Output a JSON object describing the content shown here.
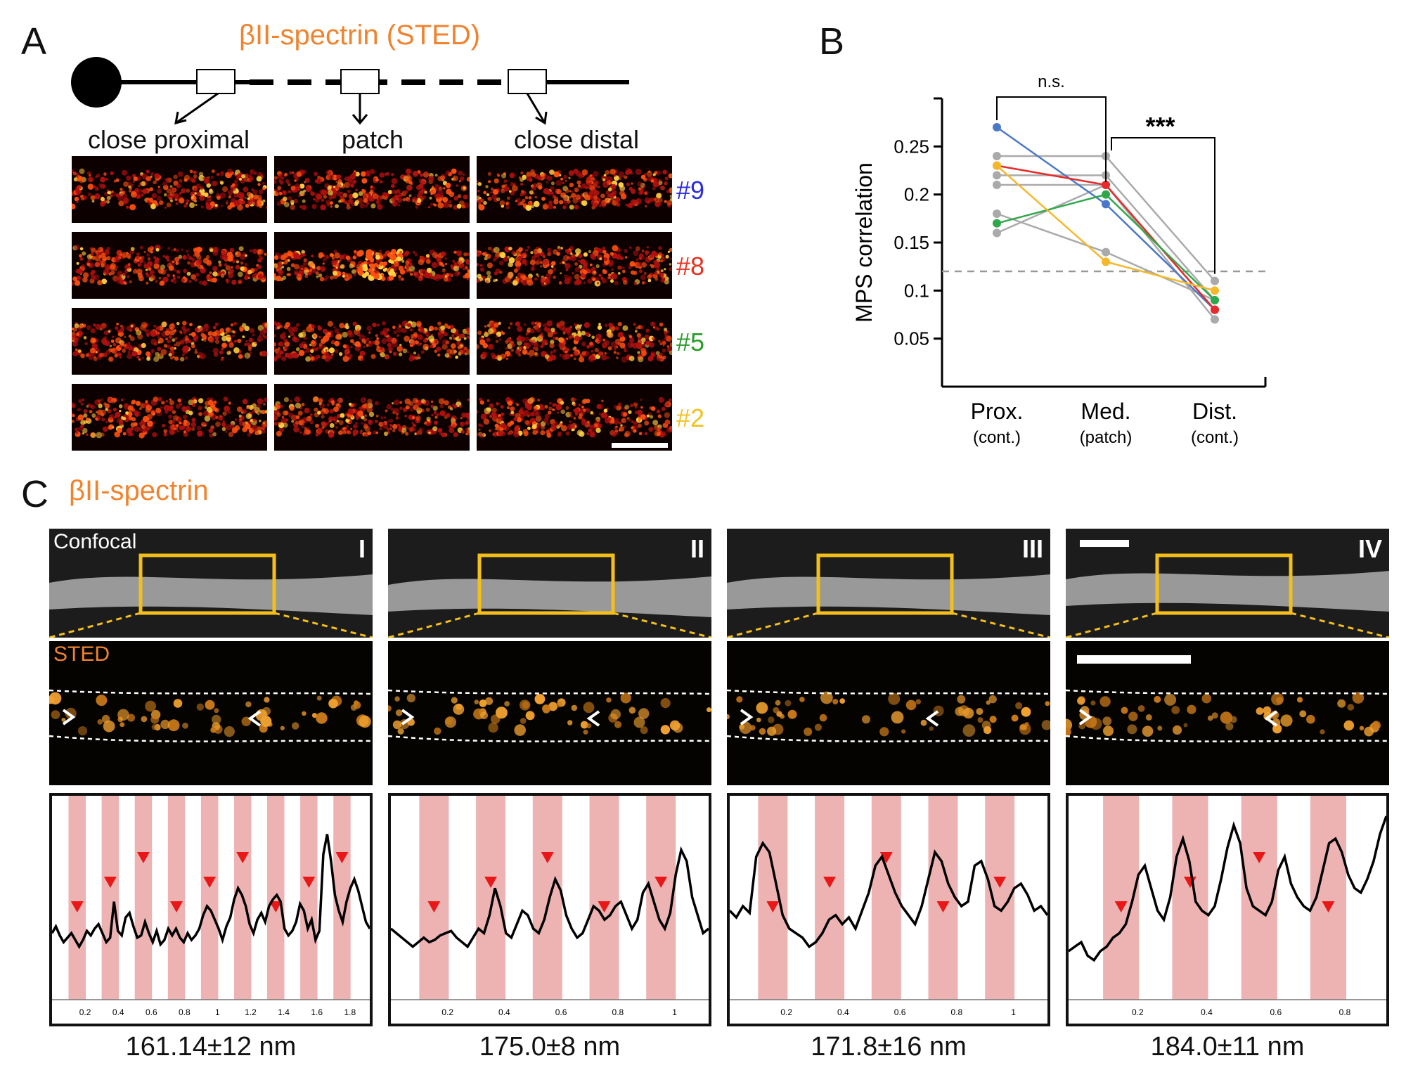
{
  "panel_a": {
    "letter": "A",
    "title": "βII-spectrin (STED)",
    "locations": [
      "close proximal",
      "patch",
      "close distal"
    ],
    "rows": [
      {
        "label": "#9",
        "color": "#2a2ae0"
      },
      {
        "label": "#8",
        "color": "#e83020"
      },
      {
        "label": "#5",
        "color": "#2a9a2a"
      },
      {
        "label": "#2",
        "color": "#f2c21e"
      }
    ]
  },
  "panel_b": {
    "letter": "B",
    "chart_data": {
      "type": "line",
      "categories": [
        "Prox.",
        "Med.",
        "Dist."
      ],
      "category_sublabels": [
        "(cont.)",
        "(patch)",
        "(cont.)"
      ],
      "ylabel": "MPS correlation",
      "yticks": [
        "0.05",
        "0.1",
        "0.15",
        "0.2",
        "0.25"
      ],
      "ylim": [
        0.0,
        0.3
      ],
      "threshold": 0.12,
      "sig_labels": [
        "n.s.",
        "***"
      ],
      "series": [
        {
          "color": "#4a78c8",
          "values": [
            0.27,
            0.19,
            0.08
          ]
        },
        {
          "color": "#e82a2a",
          "values": [
            0.23,
            0.21,
            0.08
          ]
        },
        {
          "color": "#2ea84a",
          "values": [
            0.17,
            0.2,
            0.09
          ]
        },
        {
          "color": "#f5b82a",
          "values": [
            0.23,
            0.13,
            0.1
          ]
        },
        {
          "color": "#aaaaaa",
          "values": [
            0.24,
            0.24,
            0.11
          ]
        },
        {
          "color": "#aaaaaa",
          "values": [
            0.22,
            0.22,
            0.09
          ]
        },
        {
          "color": "#aaaaaa",
          "values": [
            0.21,
            0.21,
            0.08
          ]
        },
        {
          "color": "#aaaaaa",
          "values": [
            0.18,
            0.14,
            0.09
          ]
        },
        {
          "color": "#aaaaaa",
          "values": [
            0.16,
            0.21,
            0.07
          ]
        }
      ]
    }
  },
  "panel_c": {
    "letter": "C",
    "title": "βII-spectrin",
    "confocal_label": "Confocal",
    "sted_label": "STED",
    "panels": [
      {
        "roman": "I",
        "measurement": "161.14±12 nm",
        "xticks": [
          "0.2",
          "0.4",
          "0.6",
          "0.8",
          "1",
          "1.2",
          "1.4",
          "1.6",
          "1.8"
        ]
      },
      {
        "roman": "II",
        "measurement": "175.0±8 nm",
        "xticks": [
          "0.2",
          "0.4",
          "0.6",
          "0.8",
          "1"
        ]
      },
      {
        "roman": "III",
        "measurement": "171.8±16 nm",
        "xticks": [
          "0.2",
          "0.4",
          "0.6",
          "0.8",
          "1"
        ]
      },
      {
        "roman": "IV",
        "measurement": "184.0±11 nm",
        "xticks": [
          "0.2",
          "0.4",
          "0.6",
          "0.8"
        ]
      }
    ]
  }
}
